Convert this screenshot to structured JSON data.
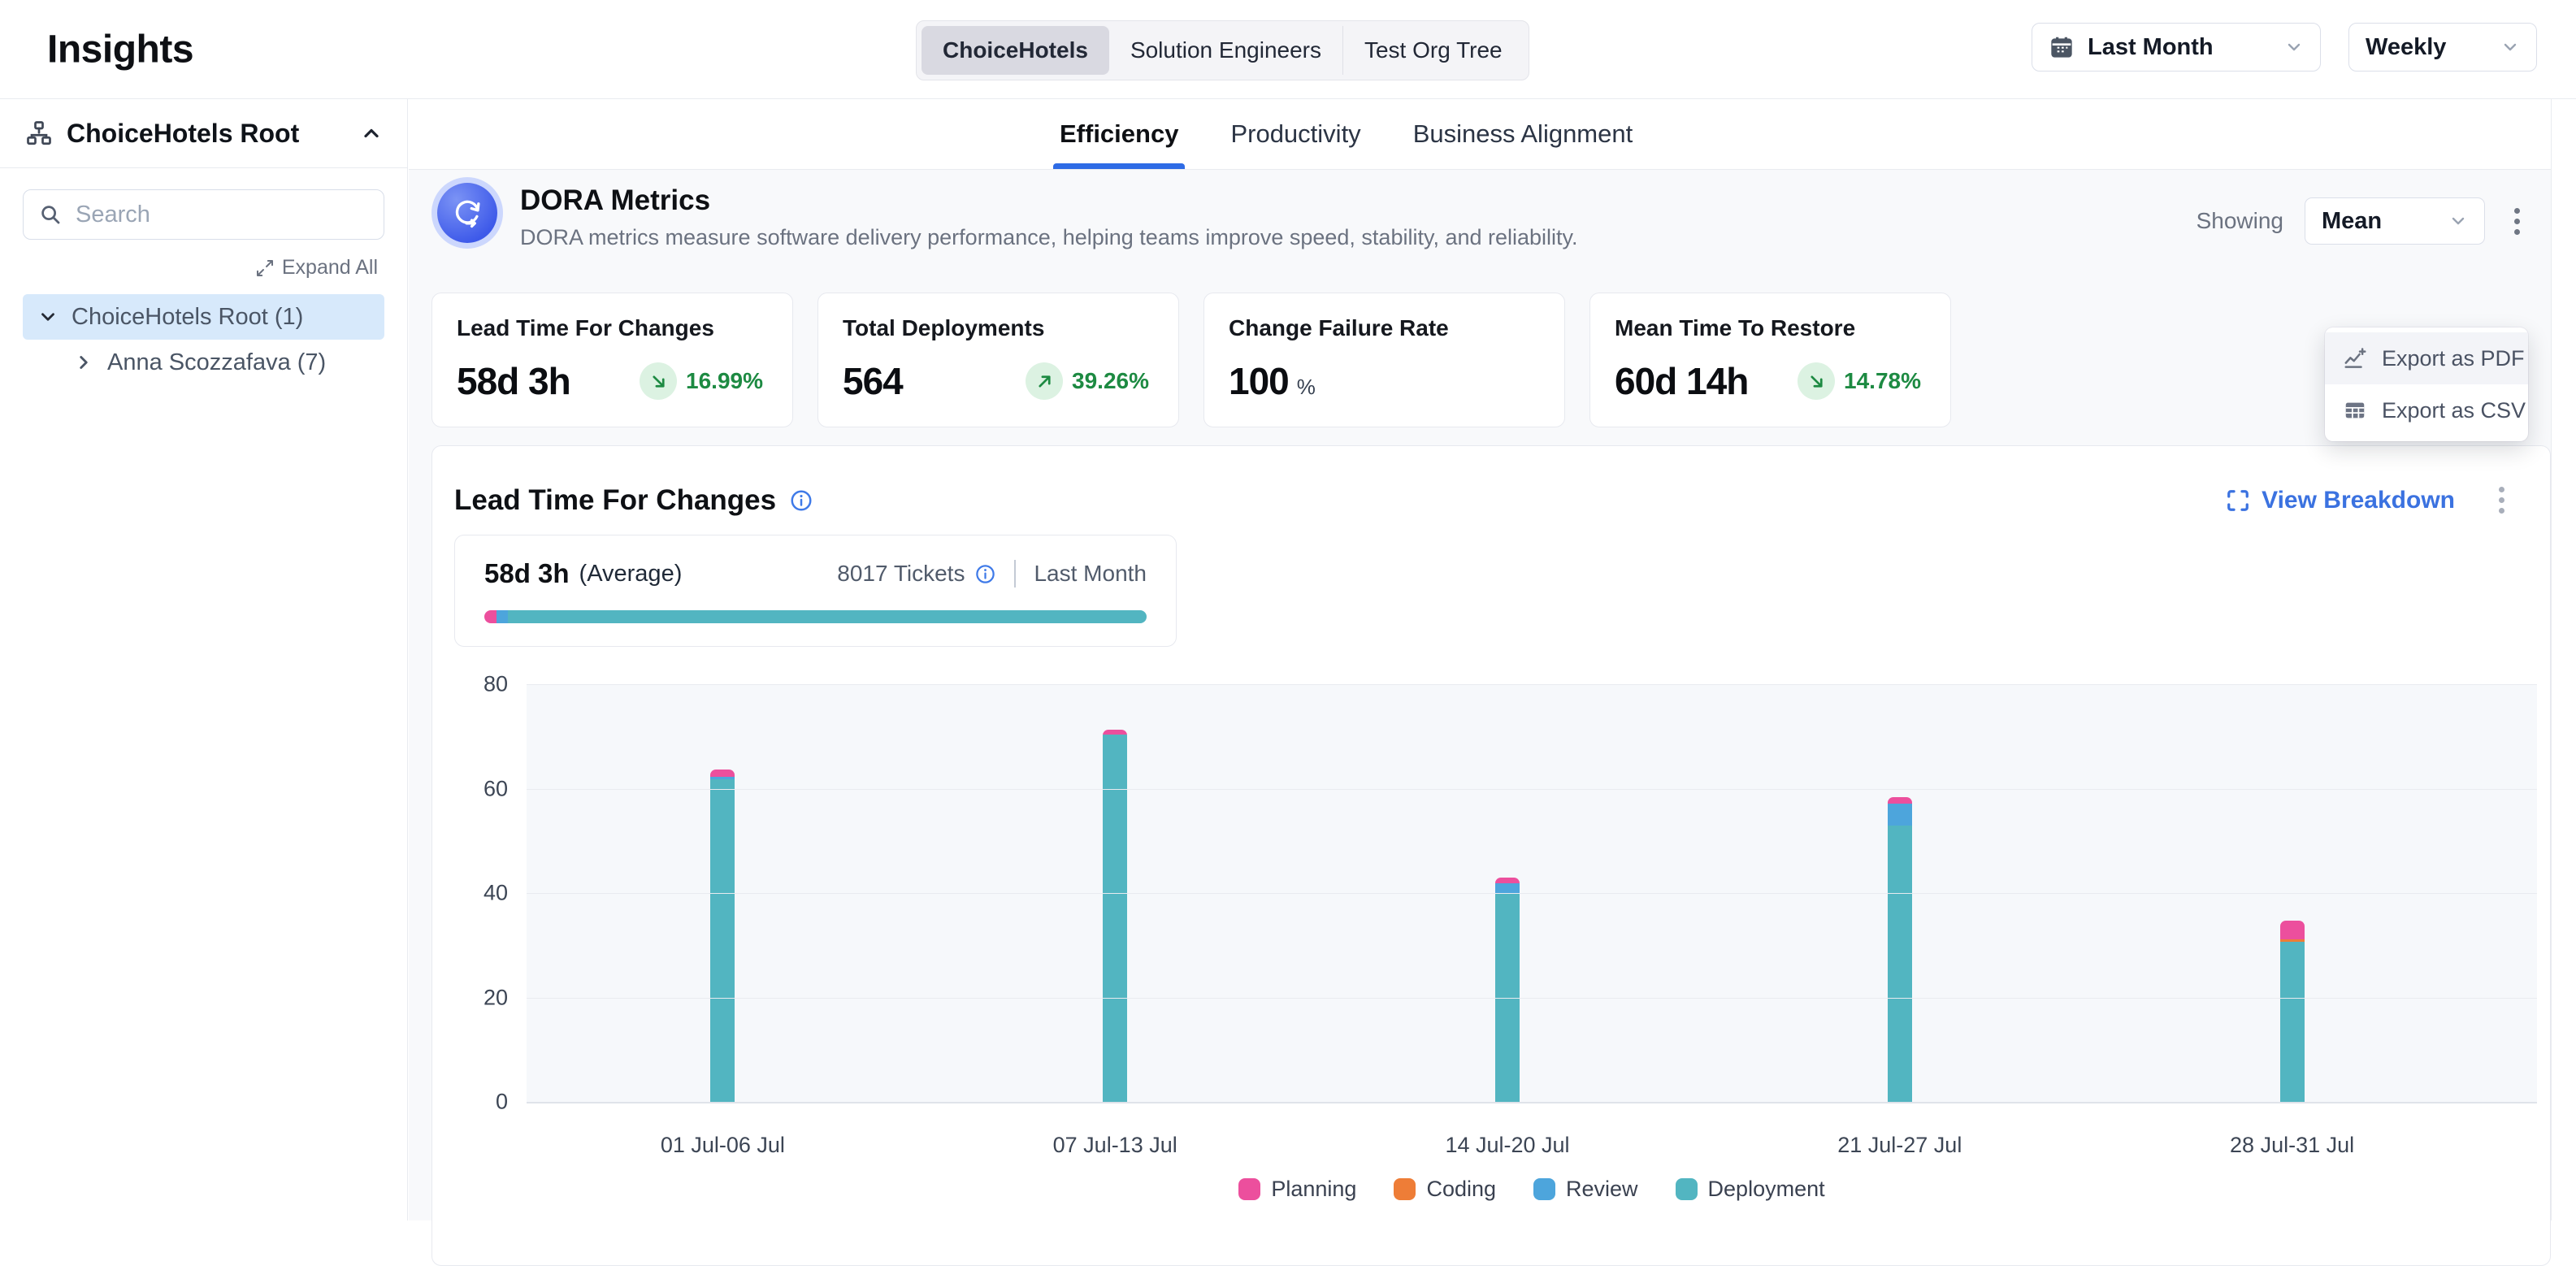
{
  "app": {
    "title": "Insights"
  },
  "topbar": {
    "org_tabs": [
      {
        "label": "ChoiceHotels",
        "active": true
      },
      {
        "label": "Solution Engineers",
        "active": false
      },
      {
        "label": "Test Org Tree",
        "active": false
      }
    ],
    "date_range": {
      "label": "Last Month"
    },
    "granularity": {
      "label": "Weekly"
    }
  },
  "sidebar": {
    "header": {
      "title": "ChoiceHotels Root"
    },
    "search": {
      "placeholder": "Search"
    },
    "expand_all_label": "Expand All",
    "tree": [
      {
        "label": "ChoiceHotels Root (1)",
        "expanded": true,
        "selected": true,
        "child": false
      },
      {
        "label": "Anna Scozzafava (7)",
        "expanded": false,
        "selected": false,
        "child": true
      }
    ]
  },
  "tabs": [
    {
      "label": "Efficiency",
      "active": true
    },
    {
      "label": "Productivity",
      "active": false
    },
    {
      "label": "Business Alignment",
      "active": false
    }
  ],
  "dora": {
    "title": "DORA Metrics",
    "description": "DORA metrics measure software delivery performance, helping teams improve speed, stability, and reliability.",
    "showing_label": "Showing",
    "showing_value": "Mean",
    "menu": [
      {
        "label": "Export as PDF",
        "icon": "chart-line-icon",
        "active": true
      },
      {
        "label": "Export as CSV",
        "icon": "table-icon",
        "active": false
      }
    ]
  },
  "metric_cards": [
    {
      "title": "Lead Time For Changes",
      "value": "58d 3h",
      "trend": {
        "direction": "down",
        "value": "16.99%"
      }
    },
    {
      "title": "Total Deployments",
      "value": "564",
      "trend": {
        "direction": "up",
        "value": "39.26%"
      }
    },
    {
      "title": "Change Failure Rate",
      "value": "100",
      "unit": "%"
    },
    {
      "title": "Mean Time To Restore",
      "value": "60d 14h",
      "trend": {
        "direction": "down",
        "value": "14.78%"
      }
    }
  ],
  "lead_time_section": {
    "title": "Lead Time For Changes",
    "view_breakdown_label": "View Breakdown",
    "summary": {
      "value": "58d 3h",
      "qualifier": "(Average)",
      "tickets": "8017 Tickets",
      "period": "Last Month",
      "progress": [
        {
          "name": "Planning",
          "pct": 1.8,
          "color": "#ec4f9d"
        },
        {
          "name": "Review",
          "pct": 1.7,
          "color": "#4da5dc"
        },
        {
          "name": "Deployment",
          "pct": 96.5,
          "color": "#52b5c1"
        }
      ]
    }
  },
  "chart_data": {
    "type": "bar",
    "stacked": true,
    "title": "Lead Time For Changes",
    "categories": [
      "01 Jul-06 Jul",
      "07 Jul-13 Jul",
      "14 Jul-20 Jul",
      "21 Jul-27 Jul",
      "28 Jul-31 Jul"
    ],
    "series": [
      {
        "name": "Planning",
        "color": "#ec4f9d",
        "values": [
          1.5,
          1.0,
          1.1,
          1.2,
          3.6
        ]
      },
      {
        "name": "Coding",
        "color": "#ee7d37",
        "values": [
          0,
          0,
          0,
          0,
          0.4
        ]
      },
      {
        "name": "Review",
        "color": "#4da5dc",
        "values": [
          0.4,
          0,
          1.9,
          4.2,
          0
        ]
      },
      {
        "name": "Deployment",
        "color": "#52b5c1",
        "values": [
          61.8,
          70.3,
          40.0,
          52.9,
          30.7
        ]
      }
    ],
    "ylim": [
      0,
      80
    ],
    "yticks": [
      0,
      20,
      40,
      60,
      80
    ],
    "grid": true,
    "legend_position": "bottom"
  },
  "colors": {
    "accent_blue": "#2e6be5",
    "link_blue": "#3b72e0",
    "green": "#1d8a42",
    "green_bg": "#dcf2e2",
    "selected_row_bg": "#d7e9fb"
  }
}
